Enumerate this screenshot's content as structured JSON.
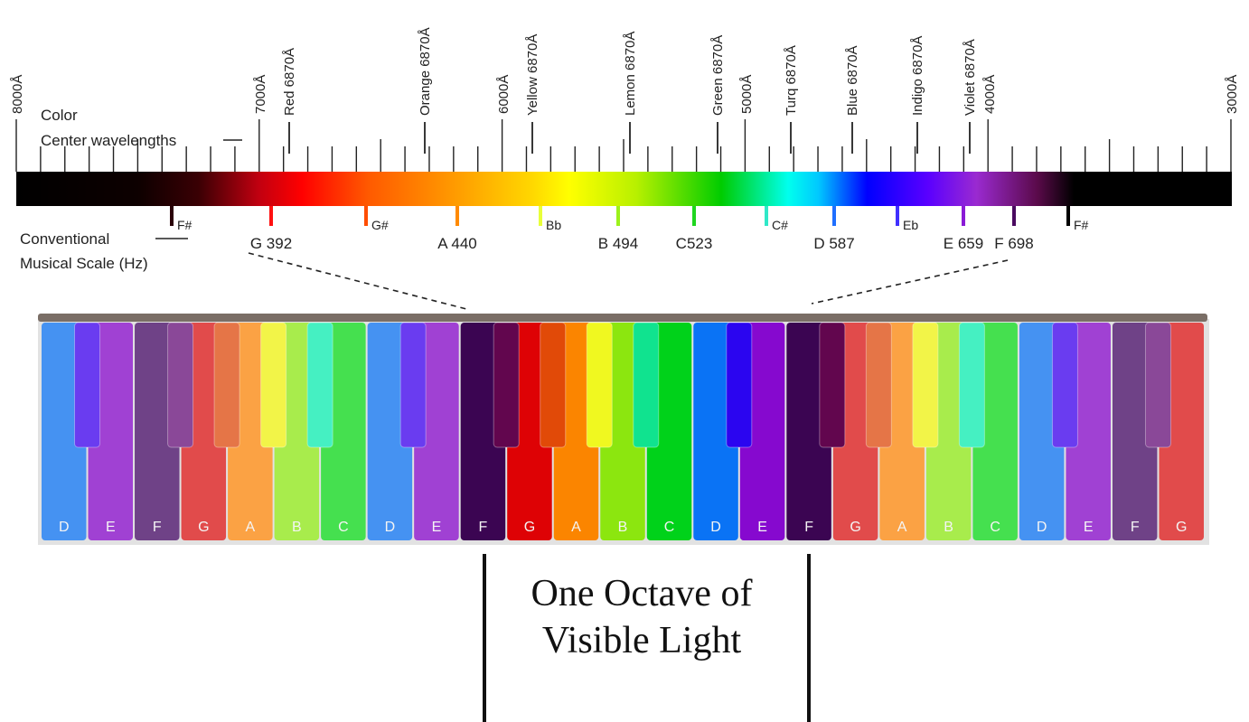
{
  "left_labels": {
    "color": "Color",
    "center_wavelengths": "Center wavelengths",
    "musical_scale_line1": "Conventional",
    "musical_scale_line2": "Musical Scale (Hz)"
  },
  "wavelength_ticks": [
    {
      "label": "8000Å"
    },
    {
      "label": "7000Å"
    },
    {
      "label": "6000Å"
    },
    {
      "label": "5000Å"
    },
    {
      "label": "4000Å"
    },
    {
      "label": "3000Å"
    }
  ],
  "color_names": [
    {
      "label": "Red 6870Å"
    },
    {
      "label": "Orange 6870Å"
    },
    {
      "label": "Yellow 6870Å"
    },
    {
      "label": "Lemon 6870Å"
    },
    {
      "label": "Green 6870Å"
    },
    {
      "label": "Turq 6870Å"
    },
    {
      "label": "Blue 6870Å"
    },
    {
      "label": "Indigo 6870Å"
    },
    {
      "label": "Violet 6870Å"
    }
  ],
  "spectrum_stops": [
    {
      "offset": 0.0,
      "color": "#000000"
    },
    {
      "offset": 0.1,
      "color": "#0d0000"
    },
    {
      "offset": 0.15,
      "color": "#3a0004"
    },
    {
      "offset": 0.2,
      "color": "#c20010"
    },
    {
      "offset": 0.235,
      "color": "#ff0000"
    },
    {
      "offset": 0.29,
      "color": "#ff5a00"
    },
    {
      "offset": 0.36,
      "color": "#ff9a00"
    },
    {
      "offset": 0.425,
      "color": "#ffd800"
    },
    {
      "offset": 0.455,
      "color": "#ffff00"
    },
    {
      "offset": 0.51,
      "color": "#b8f000"
    },
    {
      "offset": 0.58,
      "color": "#00cc00"
    },
    {
      "offset": 0.635,
      "color": "#00ffee"
    },
    {
      "offset": 0.66,
      "color": "#00c8ff"
    },
    {
      "offset": 0.7,
      "color": "#0000ff"
    },
    {
      "offset": 0.75,
      "color": "#5a00ff"
    },
    {
      "offset": 0.79,
      "color": "#9a2ad0"
    },
    {
      "offset": 0.84,
      "color": "#5a0a4a"
    },
    {
      "offset": 0.87,
      "color": "#000000"
    },
    {
      "offset": 1.0,
      "color": "#000000"
    }
  ],
  "notes": [
    {
      "label": "F#",
      "color": "#2a0008"
    },
    {
      "label": "G 392",
      "color": "#ff1010"
    },
    {
      "label": "G#",
      "color": "#ff4d00"
    },
    {
      "label": "A 440",
      "color": "#ff8a00"
    },
    {
      "label": "Bb",
      "color": "#e8ff3a"
    },
    {
      "label": "B 494",
      "color": "#9cf21b"
    },
    {
      "label": "C523",
      "color": "#1fd61f"
    },
    {
      "label": "C#",
      "color": "#30e8c8"
    },
    {
      "label": "D 587",
      "color": "#1f6fff"
    },
    {
      "label": "Eb",
      "color": "#4030ff"
    },
    {
      "label": "E 659",
      "color": "#8a1ad6"
    },
    {
      "label": "F 698",
      "color": "#4a0a60"
    },
    {
      "label": "F#",
      "color": "#000000"
    }
  ],
  "white_keys": [
    {
      "label": "D",
      "color": "#4592f2"
    },
    {
      "label": "E",
      "color": "#a041d3"
    },
    {
      "label": "F",
      "color": "#6f4287"
    },
    {
      "label": "G",
      "color": "#e14b4b"
    },
    {
      "label": "A",
      "color": "#fba244"
    },
    {
      "label": "B",
      "color": "#a8ec4c"
    },
    {
      "label": "C",
      "color": "#45e04f"
    },
    {
      "label": "D",
      "color": "#4592f2"
    },
    {
      "label": "E",
      "color": "#a041d3"
    },
    {
      "label": "F",
      "color": "#3b0552"
    },
    {
      "label": "G",
      "color": "#de0205"
    },
    {
      "label": "A",
      "color": "#fb8500"
    },
    {
      "label": "B",
      "color": "#8ce60f"
    },
    {
      "label": "C",
      "color": "#00d21a"
    },
    {
      "label": "D",
      "color": "#0a73f5"
    },
    {
      "label": "E",
      "color": "#8609cf"
    },
    {
      "label": "F",
      "color": "#3b0552"
    },
    {
      "label": "G",
      "color": "#e14b4b"
    },
    {
      "label": "A",
      "color": "#fba244"
    },
    {
      "label": "B",
      "color": "#a8ec4c"
    },
    {
      "label": "C",
      "color": "#45e04f"
    },
    {
      "label": "D",
      "color": "#4592f2"
    },
    {
      "label": "E",
      "color": "#a041d3"
    },
    {
      "label": "F",
      "color": "#6f4287"
    },
    {
      "label": "G",
      "color": "#e14b4b"
    }
  ],
  "black_keys": [
    {
      "color": "#6a3cf0"
    },
    {
      "color": "#8a4898"
    },
    {
      "color": "#e57547"
    },
    {
      "color": "#f2f448"
    },
    {
      "color": "#45f0c2"
    },
    {
      "color": "#6a3cf0"
    },
    {
      "color": "#62064e"
    },
    {
      "color": "#e14a08"
    },
    {
      "color": "#f0f820"
    },
    {
      "color": "#10e38f"
    },
    {
      "color": "#2b05f0"
    },
    {
      "color": "#62064e"
    },
    {
      "color": "#e57547"
    },
    {
      "color": "#f2f448"
    },
    {
      "color": "#45f0c2"
    },
    {
      "color": "#6a3cf0"
    },
    {
      "color": "#8a4898"
    }
  ],
  "caption": {
    "line1": "One Octave of",
    "line2": "Visible Light"
  }
}
